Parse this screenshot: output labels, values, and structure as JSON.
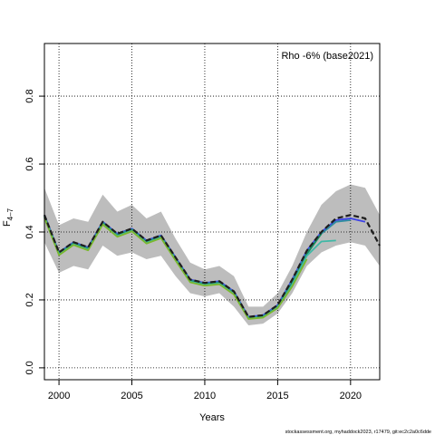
{
  "chart_data": {
    "type": "line",
    "title": "",
    "annotation": "Rho -6% (base2021)",
    "xlabel": "Years",
    "ylabel": "F",
    "ylabel_subscript": "4–7",
    "xlim": [
      1999,
      2022
    ],
    "ylim": [
      0,
      0.9
    ],
    "x_ticks": [
      2000,
      2005,
      2010,
      2015,
      2020
    ],
    "y_ticks": [
      0.0,
      0.2,
      0.4,
      0.6,
      0.8
    ],
    "y_tick_labels": [
      "0.0",
      "0.2",
      "0.4",
      "0.6",
      "0.8"
    ],
    "grid": true,
    "legend": "none",
    "footer": "stockassessment.org, myhaddock2023, r17479, git:ec2c2a0c6dde",
    "band": {
      "x": [
        1999,
        2000,
        2001,
        2002,
        2003,
        2004,
        2005,
        2006,
        2007,
        2008,
        2009,
        2010,
        2011,
        2012,
        2013,
        2014,
        2015,
        2016,
        2017,
        2018,
        2019,
        2020,
        2021,
        2022
      ],
      "lower": [
        0.37,
        0.28,
        0.3,
        0.29,
        0.36,
        0.33,
        0.34,
        0.32,
        0.33,
        0.27,
        0.22,
        0.21,
        0.22,
        0.18,
        0.125,
        0.13,
        0.16,
        0.22,
        0.3,
        0.34,
        0.36,
        0.37,
        0.36,
        0.3
      ],
      "upper": [
        0.53,
        0.42,
        0.44,
        0.43,
        0.51,
        0.46,
        0.48,
        0.44,
        0.46,
        0.38,
        0.31,
        0.29,
        0.3,
        0.27,
        0.18,
        0.18,
        0.22,
        0.3,
        0.4,
        0.48,
        0.52,
        0.54,
        0.53,
        0.45
      ]
    },
    "series": [
      {
        "color": "#1e1e1e",
        "dash": "6,3",
        "x": [
          1999,
          2000,
          2001,
          2002,
          2003,
          2004,
          2005,
          2006,
          2007,
          2008,
          2009,
          2010,
          2011,
          2012,
          2013,
          2014,
          2015,
          2016,
          2017,
          2018,
          2019,
          2020,
          2021,
          2022
        ],
        "values": [
          0.45,
          0.34,
          0.37,
          0.355,
          0.43,
          0.395,
          0.41,
          0.375,
          0.39,
          0.325,
          0.26,
          0.25,
          0.255,
          0.225,
          0.15,
          0.155,
          0.185,
          0.26,
          0.345,
          0.4,
          0.44,
          0.45,
          0.44,
          0.36
        ]
      },
      {
        "color": "#3d42e6",
        "dash": "",
        "x": [
          1999,
          2000,
          2001,
          2002,
          2003,
          2004,
          2005,
          2006,
          2007,
          2008,
          2009,
          2010,
          2011,
          2012,
          2013,
          2014,
          2015,
          2016,
          2017,
          2018,
          2019,
          2020,
          2021
        ],
        "values": [
          0.45,
          0.34,
          0.37,
          0.355,
          0.43,
          0.395,
          0.41,
          0.375,
          0.39,
          0.325,
          0.26,
          0.25,
          0.255,
          0.225,
          0.15,
          0.155,
          0.185,
          0.26,
          0.345,
          0.4,
          0.435,
          0.44,
          0.43
        ]
      },
      {
        "color": "#2f8da0",
        "dash": "",
        "x": [
          1999,
          2000,
          2001,
          2002,
          2003,
          2004,
          2005,
          2006,
          2007,
          2008,
          2009,
          2010,
          2011,
          2012,
          2013,
          2014,
          2015,
          2016,
          2017,
          2018,
          2019,
          2020
        ],
        "values": [
          0.448,
          0.338,
          0.368,
          0.352,
          0.428,
          0.392,
          0.408,
          0.372,
          0.388,
          0.322,
          0.258,
          0.248,
          0.252,
          0.222,
          0.148,
          0.152,
          0.182,
          0.255,
          0.34,
          0.395,
          0.43,
          0.435
        ]
      },
      {
        "color": "#168a5f",
        "dash": "",
        "x": [
          1999,
          2000,
          2001,
          2002,
          2003,
          2004,
          2005,
          2006,
          2007,
          2008,
          2009,
          2010,
          2011,
          2012,
          2013,
          2014,
          2015,
          2016,
          2017,
          2018
        ],
        "values": [
          0.446,
          0.336,
          0.366,
          0.35,
          0.426,
          0.39,
          0.406,
          0.37,
          0.386,
          0.32,
          0.256,
          0.246,
          0.25,
          0.22,
          0.146,
          0.15,
          0.18,
          0.25,
          0.335,
          0.395
        ]
      },
      {
        "color": "#3fb8a6",
        "dash": "",
        "x": [
          1999,
          2000,
          2001,
          2002,
          2003,
          2004,
          2005,
          2006,
          2007,
          2008,
          2009,
          2010,
          2011,
          2012,
          2013,
          2014,
          2015,
          2016,
          2017,
          2018,
          2019
        ],
        "values": [
          0.444,
          0.334,
          0.364,
          0.348,
          0.424,
          0.388,
          0.404,
          0.368,
          0.384,
          0.318,
          0.254,
          0.244,
          0.248,
          0.218,
          0.145,
          0.149,
          0.178,
          0.245,
          0.33,
          0.372,
          0.375
        ]
      },
      {
        "color": "#7ab82e",
        "dash": "",
        "x": [
          1999,
          2000,
          2001,
          2002,
          2003,
          2004,
          2005,
          2006,
          2007,
          2008,
          2009,
          2010,
          2011,
          2012,
          2013,
          2014,
          2015,
          2016,
          2017
        ],
        "values": [
          0.442,
          0.332,
          0.362,
          0.346,
          0.422,
          0.386,
          0.402,
          0.366,
          0.382,
          0.316,
          0.252,
          0.242,
          0.246,
          0.216,
          0.144,
          0.148,
          0.176,
          0.24,
          0.32
        ]
      }
    ]
  }
}
